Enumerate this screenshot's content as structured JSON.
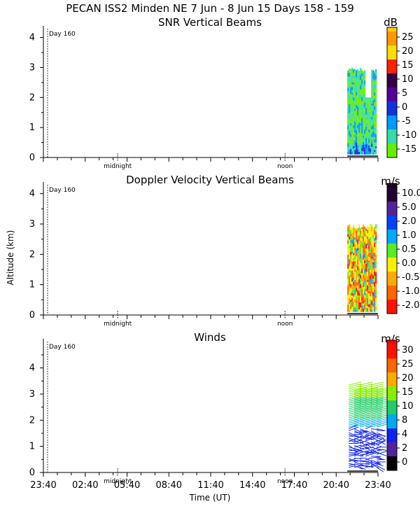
{
  "header": {
    "title": "PECAN ISS2 Minden NE   7 Jun -  8 Jun 15 Days 158 - 159"
  },
  "common": {
    "ylabel": "Altitude (km)",
    "xlabel": "Time (UT)",
    "x_range_hours": [
      0,
      24
    ],
    "xticks": [
      {
        "hour": 0,
        "label": "23:40"
      },
      {
        "hour": 3,
        "label": "02:40"
      },
      {
        "hour": 6,
        "label": "05:40"
      },
      {
        "hour": 9,
        "label": "08:40"
      },
      {
        "hour": 12,
        "label": "11:40"
      },
      {
        "hour": 15,
        "label": "14:40"
      },
      {
        "hour": 18,
        "label": "17:40"
      },
      {
        "hour": 21,
        "label": "20:40"
      },
      {
        "hour": 24,
        "label": "23:40"
      }
    ],
    "midnight_label": "midnight",
    "midnight_hour": 5.33,
    "noon_label": "noon",
    "noon_hour": 17.33,
    "day_label": "Day 160",
    "day_marker_hour": 0.3,
    "data_start_hour": 21.8,
    "data_end_hour": 24.0
  },
  "chart_data": [
    {
      "type": "heatmap",
      "title": "SNR Vertical Beams",
      "unit": "dB",
      "ylim": [
        0,
        4.2
      ],
      "yticks": [
        "0",
        "1",
        "2",
        "3",
        "4"
      ],
      "colorbar": {
        "labels": [
          "25",
          "20",
          "15",
          "10",
          "5",
          "0",
          "-5",
          "-10",
          "-15"
        ],
        "colors": [
          "#ff9900",
          "#ffdd00",
          "#ff2200",
          "#330044",
          "#550099",
          "#1133dd",
          "#0099ff",
          "#33ddaa",
          "#66ee00"
        ],
        "top_color": "#ffcc00"
      },
      "data_altitude_range_km": [
        0.1,
        3.0
      ],
      "dominant_values": "mostly -10 to -15 dB with 0 to 5 dB near the surface"
    },
    {
      "type": "heatmap",
      "title": "Doppler Velocity Vertical Beams",
      "unit": "m/s",
      "ylim": [
        0,
        4.2
      ],
      "yticks": [
        "0",
        "1",
        "2",
        "3",
        "4"
      ],
      "colorbar": {
        "labels": [
          "10.0",
          "5.0",
          "2.0",
          "1.0",
          "0.5",
          "0.0",
          "-0.5",
          "-1.0",
          "-2.0"
        ],
        "colors": [
          "#220033",
          "#552299",
          "#0044ff",
          "#00aaff",
          "#55ee22",
          "#ffee00",
          "#ffaa00",
          "#ff6600",
          "#ff1100"
        ],
        "top_color": "#220022"
      },
      "data_altitude_range_km": [
        0.1,
        3.0
      ],
      "dominant_values": "mostly -1.0 to 0.5 m/s"
    },
    {
      "type": "scatter",
      "title": "Winds",
      "unit": "m/s",
      "ylim": [
        0,
        4.9
      ],
      "yticks": [
        "0",
        "1",
        "2",
        "3",
        "4"
      ],
      "colorbar": {
        "labels": [
          "30",
          "25",
          "20",
          "15",
          "10",
          "8",
          "4",
          "2",
          "0"
        ],
        "colors": [
          "#ff1100",
          "#ff6600",
          "#ffaa00",
          "#88ee00",
          "#22cc66",
          "#00aaee",
          "#1122ee",
          "#552299",
          "#000000"
        ],
        "top_color": "#ff0000"
      },
      "data_altitude_range_km": [
        0.2,
        3.4
      ],
      "profiles_hours": [
        21.9,
        22.3,
        22.7,
        23.1,
        23.5,
        23.9
      ],
      "speed_by_altitude_ms": [
        {
          "alt": 0.3,
          "speed": 5
        },
        {
          "alt": 0.8,
          "speed": 5
        },
        {
          "alt": 1.2,
          "speed": 6
        },
        {
          "alt": 1.6,
          "speed": 7
        },
        {
          "alt": 2.0,
          "speed": 10
        },
        {
          "alt": 2.4,
          "speed": 13
        },
        {
          "alt": 2.8,
          "speed": 15
        },
        {
          "alt": 3.2,
          "speed": 16
        }
      ]
    }
  ]
}
